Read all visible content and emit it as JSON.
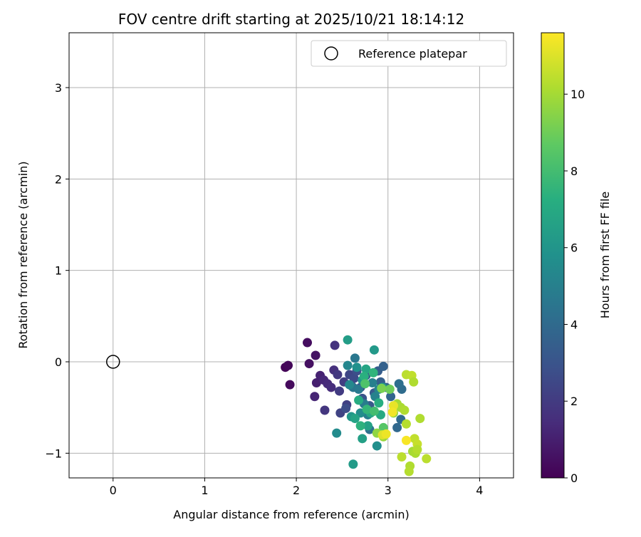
{
  "chart_data": {
    "type": "scatter",
    "title": "FOV centre drift starting at 2025/10/21 18:14:12",
    "xlabel": "Angular distance from reference (arcmin)",
    "ylabel": "Rotation from reference (arcmin)",
    "xlim": [
      -0.48,
      4.37
    ],
    "ylim": [
      -1.27,
      3.6
    ],
    "xticks": [
      0,
      1,
      2,
      3,
      4
    ],
    "yticks": [
      -1,
      0,
      1,
      2,
      3
    ],
    "grid": true,
    "legend": {
      "location": "upper right",
      "entries": [
        "Reference platepar"
      ]
    },
    "reference_point": {
      "x": 0,
      "y": 0
    },
    "colorbar": {
      "label": "Hours from first FF file",
      "min": 0,
      "max": 11.6,
      "ticks": [
        0,
        2,
        4,
        6,
        8,
        10
      ],
      "colormap": "viridis"
    },
    "points": [
      {
        "x": 1.88,
        "y": -0.06,
        "h": 0.1
      },
      {
        "x": 1.91,
        "y": -0.04,
        "h": 0.2
      },
      {
        "x": 1.93,
        "y": -0.25,
        "h": 0.3
      },
      {
        "x": 2.12,
        "y": 0.21,
        "h": 0.4
      },
      {
        "x": 2.14,
        "y": -0.02,
        "h": 0.5
      },
      {
        "x": 2.21,
        "y": 0.07,
        "h": 0.6
      },
      {
        "x": 2.22,
        "y": -0.23,
        "h": 1.0
      },
      {
        "x": 2.26,
        "y": -0.15,
        "h": 1.1
      },
      {
        "x": 2.2,
        "y": -0.38,
        "h": 1.2
      },
      {
        "x": 2.3,
        "y": -0.2,
        "h": 1.3
      },
      {
        "x": 2.34,
        "y": -0.24,
        "h": 1.4
      },
      {
        "x": 2.38,
        "y": -0.28,
        "h": 1.5
      },
      {
        "x": 2.41,
        "y": -0.09,
        "h": 1.6
      },
      {
        "x": 2.42,
        "y": 0.18,
        "h": 1.7
      },
      {
        "x": 2.31,
        "y": -0.53,
        "h": 1.8
      },
      {
        "x": 2.45,
        "y": -0.14,
        "h": 1.9
      },
      {
        "x": 2.47,
        "y": -0.32,
        "h": 2.0
      },
      {
        "x": 2.52,
        "y": -0.22,
        "h": 2.1
      },
      {
        "x": 2.55,
        "y": -0.47,
        "h": 2.2
      },
      {
        "x": 2.48,
        "y": -0.56,
        "h": 2.3
      },
      {
        "x": 2.58,
        "y": -0.14,
        "h": 2.4
      },
      {
        "x": 2.6,
        "y": -0.26,
        "h": 2.5
      },
      {
        "x": 2.63,
        "y": -0.18,
        "h": 2.6
      },
      {
        "x": 2.54,
        "y": -0.51,
        "h": 2.7
      },
      {
        "x": 2.66,
        "y": -0.1,
        "h": 2.8
      },
      {
        "x": 2.7,
        "y": -0.28,
        "h": 2.9
      },
      {
        "x": 2.72,
        "y": -0.4,
        "h": 3.0
      },
      {
        "x": 2.76,
        "y": -0.15,
        "h": 3.1
      },
      {
        "x": 2.8,
        "y": -0.48,
        "h": 3.2
      },
      {
        "x": 2.85,
        "y": -0.34,
        "h": 3.3
      },
      {
        "x": 2.89,
        "y": -0.1,
        "h": 3.4
      },
      {
        "x": 2.92,
        "y": -0.22,
        "h": 3.5
      },
      {
        "x": 2.95,
        "y": -0.05,
        "h": 3.6
      },
      {
        "x": 2.98,
        "y": -0.28,
        "h": 3.7
      },
      {
        "x": 3.03,
        "y": -0.38,
        "h": 3.8
      },
      {
        "x": 3.1,
        "y": -0.72,
        "h": 3.9
      },
      {
        "x": 3.14,
        "y": -0.63,
        "h": 4.0
      },
      {
        "x": 3.15,
        "y": -0.3,
        "h": 4.1
      },
      {
        "x": 3.12,
        "y": -0.24,
        "h": 4.2
      },
      {
        "x": 2.8,
        "y": -0.74,
        "h": 4.3
      },
      {
        "x": 2.62,
        "y": -0.28,
        "h": 4.5
      },
      {
        "x": 2.64,
        "y": 0.04,
        "h": 4.6
      },
      {
        "x": 2.68,
        "y": -0.3,
        "h": 4.7
      },
      {
        "x": 2.74,
        "y": -0.46,
        "h": 4.8
      },
      {
        "x": 2.78,
        "y": -0.58,
        "h": 4.9
      },
      {
        "x": 2.83,
        "y": -0.23,
        "h": 5.0
      },
      {
        "x": 2.86,
        "y": -0.38,
        "h": 5.1
      },
      {
        "x": 2.9,
        "y": -0.3,
        "h": 5.2
      },
      {
        "x": 2.56,
        "y": -0.04,
        "h": 5.3
      },
      {
        "x": 2.58,
        "y": -0.25,
        "h": 5.4
      },
      {
        "x": 2.44,
        "y": -0.78,
        "h": 5.5
      },
      {
        "x": 2.7,
        "y": -0.56,
        "h": 5.6
      },
      {
        "x": 2.88,
        "y": -0.92,
        "h": 5.7
      },
      {
        "x": 2.66,
        "y": -0.06,
        "h": 5.8
      },
      {
        "x": 2.72,
        "y": -0.2,
        "h": 5.9
      },
      {
        "x": 2.94,
        "y": -0.28,
        "h": 6.0
      },
      {
        "x": 2.6,
        "y": -0.6,
        "h": 6.1
      },
      {
        "x": 2.85,
        "y": 0.13,
        "h": 6.2
      },
      {
        "x": 2.62,
        "y": -1.12,
        "h": 6.3
      },
      {
        "x": 2.56,
        "y": 0.24,
        "h": 6.4
      },
      {
        "x": 2.72,
        "y": -0.84,
        "h": 6.5
      },
      {
        "x": 2.78,
        "y": -0.7,
        "h": 6.6
      },
      {
        "x": 2.64,
        "y": -0.62,
        "h": 6.7
      },
      {
        "x": 2.76,
        "y": -0.08,
        "h": 6.8
      },
      {
        "x": 2.81,
        "y": -0.56,
        "h": 6.9
      },
      {
        "x": 2.92,
        "y": -0.58,
        "h": 7.0
      },
      {
        "x": 2.68,
        "y": -0.42,
        "h": 7.1
      },
      {
        "x": 2.9,
        "y": -0.45,
        "h": 7.2
      },
      {
        "x": 2.74,
        "y": -0.16,
        "h": 7.3
      },
      {
        "x": 2.7,
        "y": -0.7,
        "h": 7.4
      },
      {
        "x": 2.84,
        "y": -0.12,
        "h": 7.5
      },
      {
        "x": 2.77,
        "y": -0.52,
        "h": 7.6
      },
      {
        "x": 2.85,
        "y": -0.54,
        "h": 8.0
      },
      {
        "x": 2.95,
        "y": -0.72,
        "h": 8.5
      },
      {
        "x": 2.75,
        "y": -0.24,
        "h": 8.3
      },
      {
        "x": 3.02,
        "y": -0.3,
        "h": 9.0
      },
      {
        "x": 2.93,
        "y": -0.29,
        "h": 9.2
      },
      {
        "x": 2.88,
        "y": -0.78,
        "h": 9.6
      },
      {
        "x": 2.95,
        "y": -0.82,
        "h": 9.8
      },
      {
        "x": 3.06,
        "y": -0.56,
        "h": 9.5
      },
      {
        "x": 3.1,
        "y": -0.46,
        "h": 10.0
      },
      {
        "x": 3.14,
        "y": -0.5,
        "h": 10.1
      },
      {
        "x": 3.18,
        "y": -0.53,
        "h": 10.2
      },
      {
        "x": 3.2,
        "y": -0.68,
        "h": 10.3
      },
      {
        "x": 3.2,
        "y": -0.14,
        "h": 10.4
      },
      {
        "x": 3.26,
        "y": -0.15,
        "h": 10.5
      },
      {
        "x": 3.28,
        "y": -0.22,
        "h": 10.2
      },
      {
        "x": 3.27,
        "y": -0.98,
        "h": 10.0
      },
      {
        "x": 3.3,
        "y": -1.0,
        "h": 10.1
      },
      {
        "x": 3.24,
        "y": -1.14,
        "h": 10.2
      },
      {
        "x": 3.23,
        "y": -1.2,
        "h": 10.3
      },
      {
        "x": 3.15,
        "y": -1.04,
        "h": 10.4
      },
      {
        "x": 3.29,
        "y": -0.84,
        "h": 10.5
      },
      {
        "x": 3.32,
        "y": -0.9,
        "h": 10.6
      },
      {
        "x": 3.35,
        "y": -0.62,
        "h": 10.2
      },
      {
        "x": 3.42,
        "y": -1.06,
        "h": 10.4
      },
      {
        "x": 3.32,
        "y": -0.96,
        "h": 10.3
      },
      {
        "x": 2.94,
        "y": -0.8,
        "h": 11.0
      },
      {
        "x": 3.06,
        "y": -0.48,
        "h": 11.2
      },
      {
        "x": 3.05,
        "y": -0.55,
        "h": 11.4
      },
      {
        "x": 3.2,
        "y": -0.86,
        "h": 11.5
      },
      {
        "x": 2.98,
        "y": -0.79,
        "h": 11.3
      }
    ]
  }
}
